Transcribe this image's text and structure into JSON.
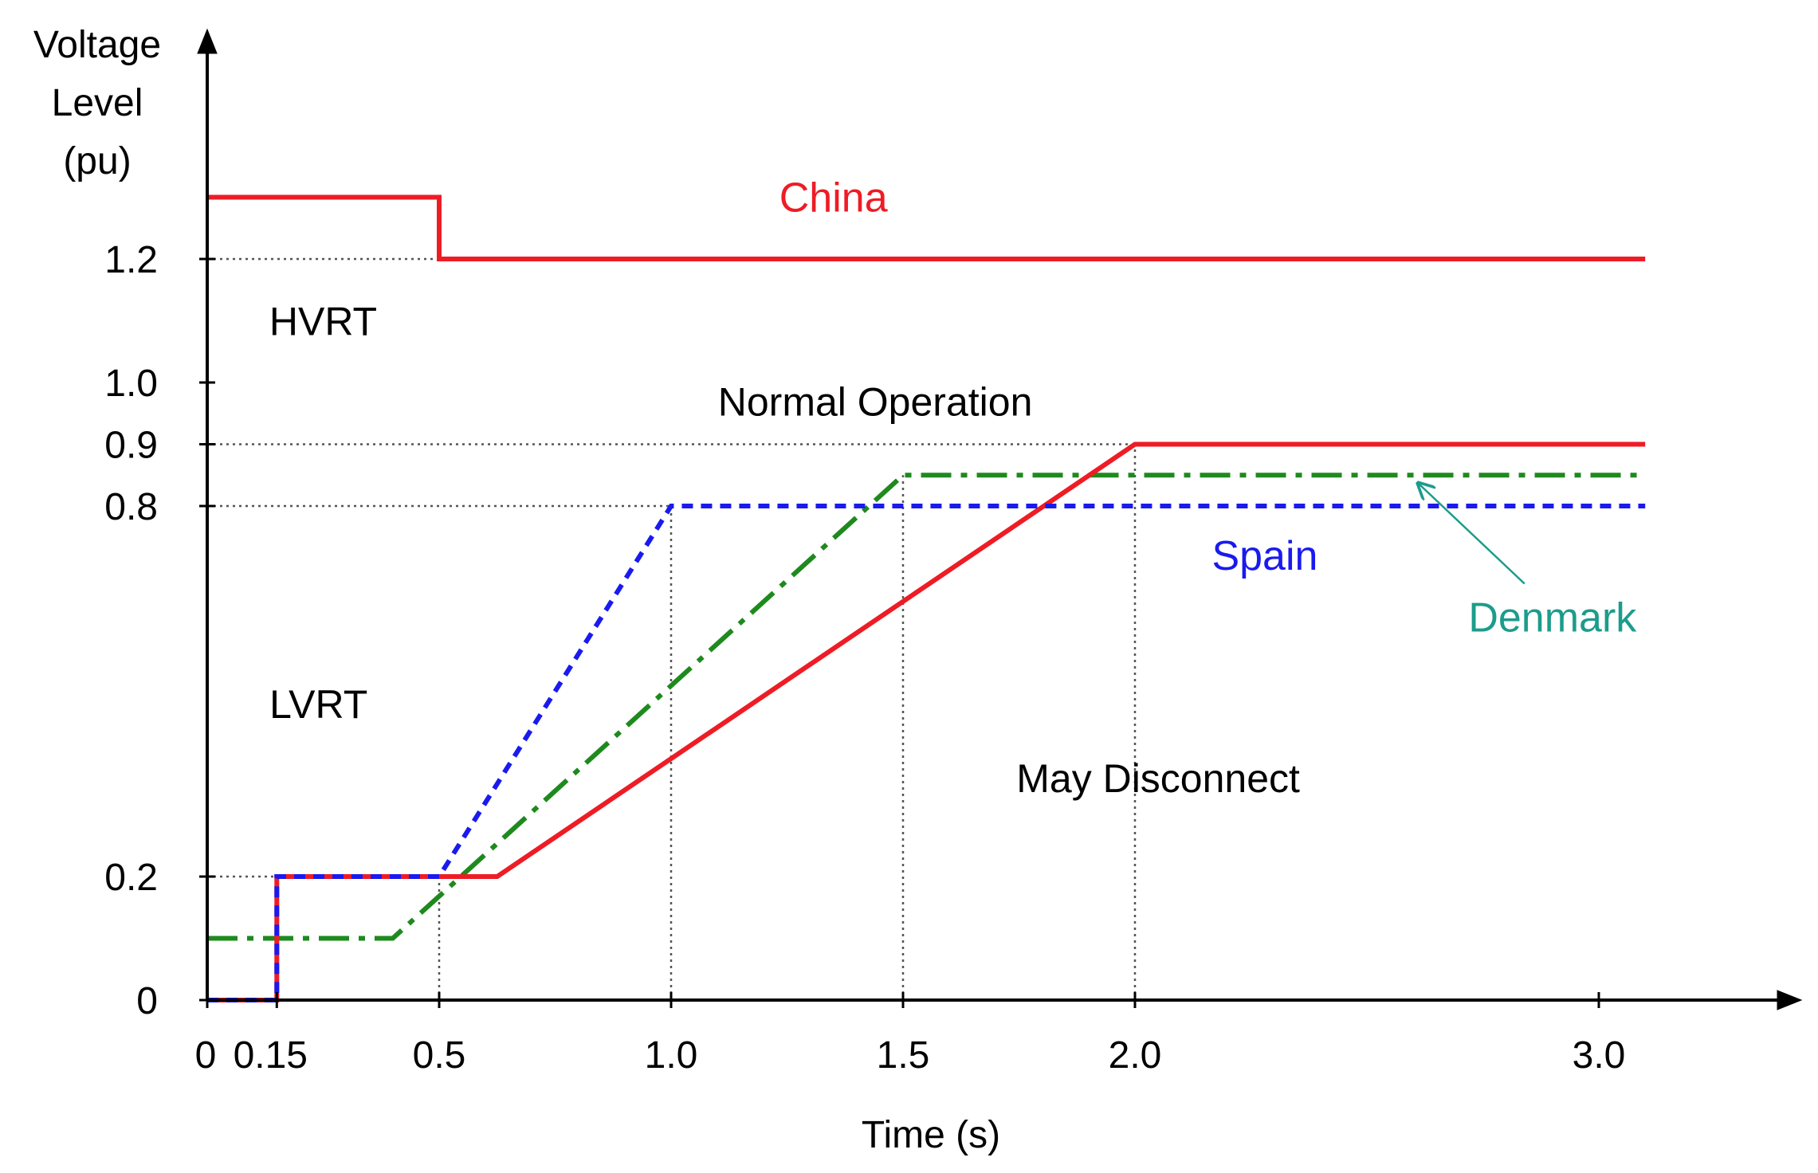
{
  "chart_data": {
    "type": "line",
    "title": "",
    "xlabel": "Time (s)",
    "ylabel": [
      "Voltage",
      "Level",
      "(pu)"
    ],
    "xlim": [
      0,
      3.3
    ],
    "ylim": [
      0,
      1.4
    ],
    "x_ticks": [
      {
        "value": 0,
        "label": "0"
      },
      {
        "value": 0.15,
        "label": "0.15"
      },
      {
        "value": 0.5,
        "label": "0.5"
      },
      {
        "value": 1.0,
        "label": "1.0"
      },
      {
        "value": 1.5,
        "label": "1.5"
      },
      {
        "value": 2.0,
        "label": "2.0"
      },
      {
        "value": 3.0,
        "label": "3.0"
      }
    ],
    "y_ticks": [
      {
        "value": 0,
        "label": "0"
      },
      {
        "value": 0.2,
        "label": "0.2"
      },
      {
        "value": 0.8,
        "label": "0.8"
      },
      {
        "value": 0.9,
        "label": "0.9"
      },
      {
        "value": 1.0,
        "label": "1.0"
      },
      {
        "value": 1.2,
        "label": "1.2"
      }
    ],
    "series": [
      {
        "name": "China",
        "style": "solid",
        "color": "#ee1c25",
        "points": [
          [
            0,
            0
          ],
          [
            0.15,
            0
          ],
          [
            0.15,
            0.2
          ],
          [
            0.625,
            0.2
          ],
          [
            2.0,
            0.9
          ],
          [
            3.1,
            0.9
          ]
        ]
      },
      {
        "name": "China",
        "style": "solid",
        "color": "#ee1c25",
        "points": [
          [
            0,
            1.3
          ],
          [
            0.5,
            1.3
          ],
          [
            0.5,
            1.2
          ],
          [
            3.1,
            1.2
          ]
        ]
      },
      {
        "name": "Spain",
        "style": "dashed",
        "color": "#1a1aee",
        "points": [
          [
            0,
            0
          ],
          [
            0.15,
            0
          ],
          [
            0.15,
            0.2
          ],
          [
            0.5,
            0.2
          ],
          [
            1.0,
            0.8
          ],
          [
            3.1,
            0.8
          ]
        ]
      },
      {
        "name": "Denmark",
        "style": "dashdot",
        "color": "#1e8a1e",
        "points": [
          [
            0,
            0.1
          ],
          [
            0.4,
            0.1
          ],
          [
            1.5,
            0.85
          ],
          [
            3.1,
            0.85
          ]
        ]
      }
    ],
    "reference_lines": {
      "horizontal": [
        {
          "y": 1.2,
          "x_to": 0.5
        },
        {
          "y": 0.9,
          "x_to": 2.0
        },
        {
          "y": 0.8,
          "x_to": 1.0
        },
        {
          "y": 0.2,
          "x_to": 0.15
        }
      ],
      "vertical": [
        {
          "x": 0.5,
          "y_to": 0.2
        },
        {
          "x": 1.0,
          "y_to": 0.8
        },
        {
          "x": 1.5,
          "y_to": 0.85
        },
        {
          "x": 2.0,
          "y_to": 0.9
        }
      ]
    },
    "annotations": [
      {
        "text": "China",
        "x": 1.35,
        "y": 1.3,
        "color": "#ee1c25",
        "role": "series"
      },
      {
        "text": "Spain",
        "x": 2.28,
        "y": 0.72,
        "color": "#1a1aee",
        "role": "series"
      },
      {
        "text": "Denmark",
        "x": 2.9,
        "y": 0.62,
        "color": "#1c9c8c",
        "role": "series",
        "arrow_to": [
          2.6,
          0.85
        ]
      },
      {
        "text": "HVRT",
        "x": 0.25,
        "y": 1.1,
        "color": "#000000",
        "role": "region"
      },
      {
        "text": "Normal Operation",
        "x": 1.44,
        "y": 0.97,
        "color": "#000000",
        "role": "region"
      },
      {
        "text": "LVRT",
        "x": 0.24,
        "y": 0.48,
        "color": "#000000",
        "role": "region"
      },
      {
        "text": "May Disconnect",
        "x": 2.05,
        "y": 0.36,
        "color": "#000000",
        "role": "region"
      }
    ]
  }
}
